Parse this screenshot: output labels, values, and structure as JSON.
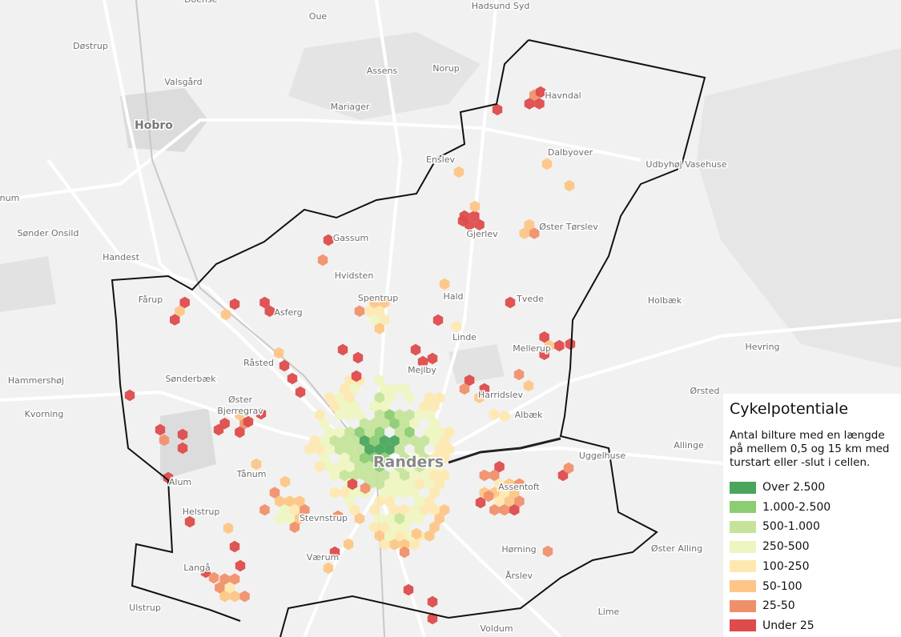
{
  "map": {
    "places": [
      {
        "name": "Doense"
      },
      {
        "name": "Oue"
      },
      {
        "name": "Hadsund Syd"
      },
      {
        "name": "Døstrup"
      },
      {
        "name": "Valsgård"
      },
      {
        "name": "Assens"
      },
      {
        "name": "Norup"
      },
      {
        "name": "Mariager"
      },
      {
        "name": "Havndal"
      },
      {
        "name": "Hobro"
      },
      {
        "name": "Dalbyover"
      },
      {
        "name": "Enslev"
      },
      {
        "name": "Udbyhøj Vasehuse"
      },
      {
        "name": "num"
      },
      {
        "name": "Sønder Onsild"
      },
      {
        "name": "Handest"
      },
      {
        "name": "Gassum"
      },
      {
        "name": "Gjerlev"
      },
      {
        "name": "Øster Tørslev"
      },
      {
        "name": "Hvidsten"
      },
      {
        "name": "Spentrup"
      },
      {
        "name": "Hald"
      },
      {
        "name": "Tvede"
      },
      {
        "name": "Fårup"
      },
      {
        "name": "Asferg"
      },
      {
        "name": "Holbæk"
      },
      {
        "name": "Linde"
      },
      {
        "name": "Mellerup"
      },
      {
        "name": "Hevring"
      },
      {
        "name": "Råsted"
      },
      {
        "name": "Mejlby"
      },
      {
        "name": "Hammershøj"
      },
      {
        "name": "Sønderbæk"
      },
      {
        "name": "Harridslev"
      },
      {
        "name": "Ørsted"
      },
      {
        "name": "Øster"
      },
      {
        "name": "Bjerregrav"
      },
      {
        "name": "Kvorning"
      },
      {
        "name": "Albæk"
      },
      {
        "name": "Allinge"
      },
      {
        "name": "Randers"
      },
      {
        "name": "Uggelhuse"
      },
      {
        "name": "Tånum"
      },
      {
        "name": "Assentoft"
      },
      {
        "name": "Alum"
      },
      {
        "name": "Helstrup"
      },
      {
        "name": "Stevnstrup"
      },
      {
        "name": "Hørning"
      },
      {
        "name": "Øster Alling"
      },
      {
        "name": "Værum"
      },
      {
        "name": "Langå"
      },
      {
        "name": "Årslev"
      },
      {
        "name": "Ulstrup"
      },
      {
        "name": "Lime"
      },
      {
        "name": "Voldum"
      }
    ],
    "legend": {
      "title": "Cykelpotentiale",
      "description": "Antal bilture med en længde på mellem 0,5 og 15 km med turstart eller -slut i cellen.",
      "classes": [
        {
          "label": "Over 2.500",
          "color": "#4aa55d"
        },
        {
          "label": "1.000-2.500",
          "color": "#8ccc72"
        },
        {
          "label": "500-1.000",
          "color": "#c5e49a"
        },
        {
          "label": "250-500",
          "color": "#eef5c0"
        },
        {
          "label": "100-250",
          "color": "#fde8b0"
        },
        {
          "label": "50-100",
          "color": "#fdc586"
        },
        {
          "label": "25-50",
          "color": "#f0906a"
        },
        {
          "label": "Under 25",
          "color": "#dd4b4b"
        }
      ]
    }
  }
}
